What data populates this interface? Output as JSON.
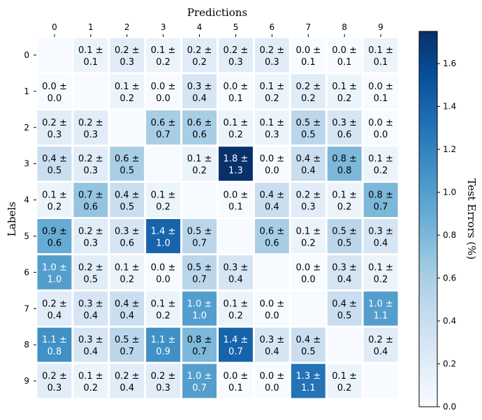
{
  "chart_data": {
    "type": "heatmap",
    "title": "",
    "xlabel": "Predictions",
    "ylabel": "Labels",
    "x_categories": [
      "0",
      "1",
      "2",
      "3",
      "4",
      "5",
      "6",
      "7",
      "8",
      "9"
    ],
    "y_categories": [
      "0",
      "1",
      "2",
      "3",
      "4",
      "5",
      "6",
      "7",
      "8",
      "9"
    ],
    "colorbar": {
      "label": "Test Errors (%)",
      "range": [
        0,
        1.75
      ],
      "ticks": [
        "0.0",
        "0.2",
        "0.4",
        "0.6",
        "0.8",
        "1.0",
        "1.2",
        "1.4",
        "1.6"
      ],
      "colormap": "Blues"
    },
    "means": [
      [
        null,
        0.1,
        0.2,
        0.1,
        0.2,
        0.2,
        0.2,
        0.0,
        0.0,
        0.1
      ],
      [
        0.0,
        null,
        0.1,
        0.0,
        0.3,
        0.0,
        0.1,
        0.2,
        0.1,
        0.0
      ],
      [
        0.2,
        0.2,
        null,
        0.6,
        0.6,
        0.1,
        0.1,
        0.5,
        0.3,
        0.0
      ],
      [
        0.4,
        0.2,
        0.6,
        null,
        0.1,
        1.8,
        0.0,
        0.4,
        0.8,
        0.1
      ],
      [
        0.1,
        0.7,
        0.4,
        0.1,
        null,
        0.0,
        0.4,
        0.2,
        0.1,
        0.8
      ],
      [
        0.9,
        0.2,
        0.3,
        1.4,
        0.5,
        null,
        0.6,
        0.1,
        0.5,
        0.3
      ],
      [
        1.0,
        0.2,
        0.1,
        0.0,
        0.5,
        0.3,
        null,
        0.0,
        0.3,
        0.1
      ],
      [
        0.2,
        0.3,
        0.4,
        0.1,
        1.0,
        0.1,
        0.0,
        null,
        0.4,
        1.0
      ],
      [
        1.1,
        0.3,
        0.5,
        1.1,
        0.8,
        1.4,
        0.3,
        0.4,
        null,
        0.2
      ],
      [
        0.2,
        0.1,
        0.2,
        0.2,
        1.0,
        0.0,
        0.0,
        1.3,
        0.1,
        null
      ]
    ],
    "stds": [
      [
        null,
        0.1,
        0.3,
        0.2,
        0.2,
        0.3,
        0.3,
        0.1,
        0.1,
        0.1
      ],
      [
        0.0,
        null,
        0.2,
        0.0,
        0.4,
        0.1,
        0.2,
        0.2,
        0.2,
        0.1
      ],
      [
        0.3,
        0.3,
        null,
        0.7,
        0.6,
        0.2,
        0.3,
        0.5,
        0.6,
        0.0
      ],
      [
        0.5,
        0.3,
        0.5,
        null,
        0.2,
        1.3,
        0.0,
        0.4,
        0.8,
        0.2
      ],
      [
        0.2,
        0.6,
        0.5,
        0.2,
        null,
        0.1,
        0.4,
        0.3,
        0.2,
        0.7
      ],
      [
        0.6,
        0.3,
        0.6,
        1.0,
        0.7,
        null,
        0.6,
        0.2,
        0.5,
        0.4
      ],
      [
        1.0,
        0.5,
        0.2,
        0.0,
        0.7,
        0.4,
        null,
        0.0,
        0.4,
        0.2
      ],
      [
        0.4,
        0.4,
        0.4,
        0.2,
        1.0,
        0.2,
        0.0,
        null,
        0.5,
        1.1
      ],
      [
        0.8,
        0.4,
        0.7,
        0.9,
        0.7,
        0.7,
        0.4,
        0.5,
        null,
        0.4
      ],
      [
        0.3,
        0.2,
        0.4,
        0.3,
        0.7,
        0.1,
        0.0,
        1.1,
        0.2,
        null
      ]
    ]
  }
}
